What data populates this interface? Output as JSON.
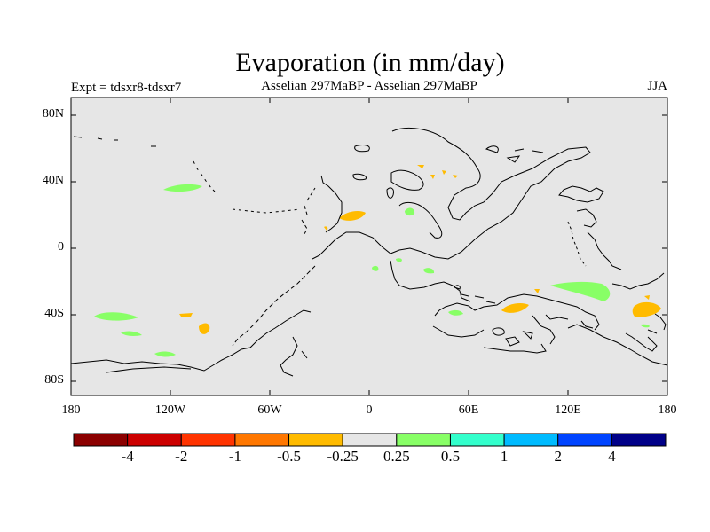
{
  "header": {
    "title": "Evaporation (in mm/day)",
    "experiment": "Expt = tdsxr8-tdsxr7",
    "subtitle": "Asselian 297MaBP - Asselian 297MaBP",
    "season": "JJA"
  },
  "map": {
    "projection": "cylindrical-equidistant",
    "lon_range": [
      -180,
      180
    ],
    "lat_range": [
      -90,
      90
    ],
    "background_color": "#e6e6e6",
    "coastline_color": "#000000",
    "lat_ticks": [
      "80N",
      "40N",
      "0",
      "40S",
      "80S"
    ],
    "lon_ticks": [
      "180",
      "120W",
      "60W",
      "0",
      "60E",
      "120E",
      "180"
    ]
  },
  "colorbar": {
    "colors": [
      "#8b0000",
      "#cc0000",
      "#ff3300",
      "#ff7700",
      "#ffbb00",
      "#e6e6e6",
      "#88ff66",
      "#33ffcc",
      "#00bbff",
      "#0044ff",
      "#000088"
    ],
    "labels": [
      "-4",
      "-2",
      "-1",
      "-0.5",
      "-0.25",
      "0.25",
      "0.5",
      "1",
      "2",
      "4"
    ]
  }
}
